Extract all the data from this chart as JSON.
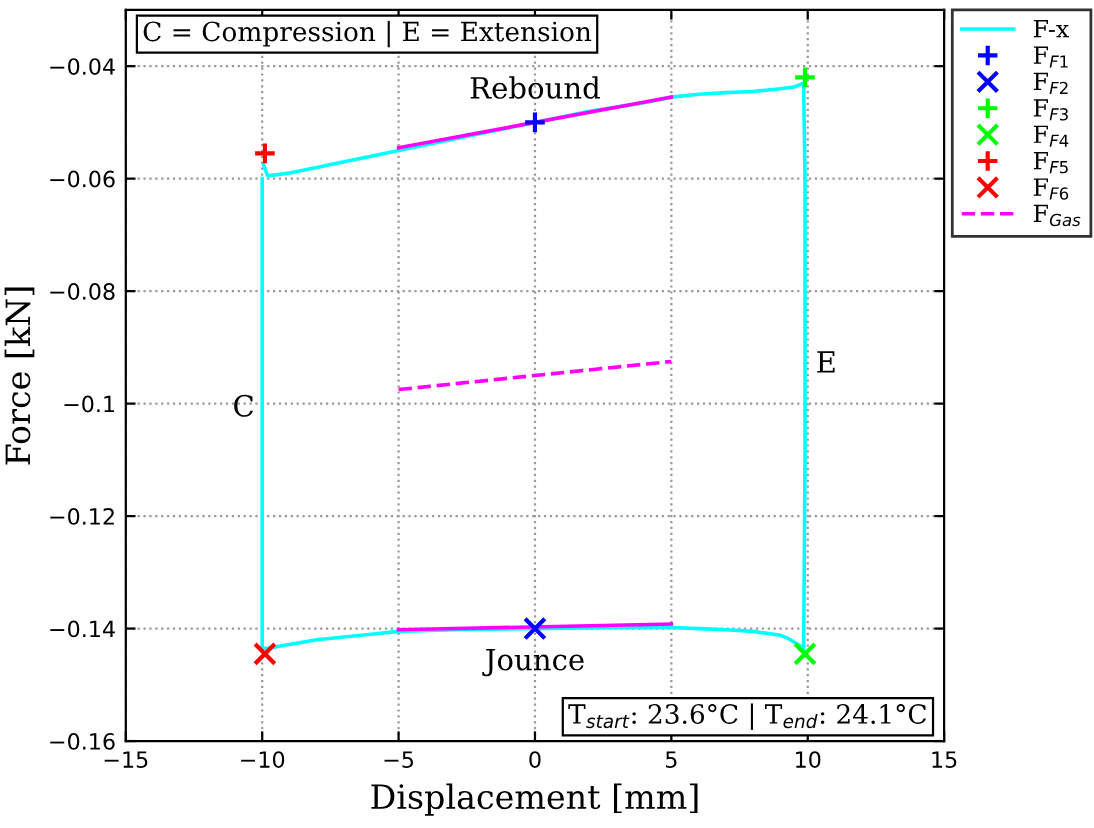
{
  "chart_data": {
    "type": "line",
    "xlabel": "Displacement [mm]",
    "ylabel": "Force [kN]",
    "xlim": [
      -15,
      15
    ],
    "ylim": [
      -0.16,
      -0.03
    ],
    "xticks": [
      -15,
      -10,
      -5,
      0,
      5,
      10,
      15
    ],
    "yticks": [
      -0.16,
      -0.14,
      -0.12,
      -0.1,
      -0.08,
      -0.06,
      -0.04
    ],
    "grid": true,
    "legend": "right",
    "line_style": "solid",
    "series": [
      {
        "name": "F-x",
        "color": "#00ffff",
        "x": [
          -9.95,
          -9.8,
          -9.0,
          -8.0,
          -7.0,
          -6.0,
          -5.0,
          -3.0,
          -1.0,
          0.0,
          2.0,
          4.0,
          5.0,
          6.0,
          7.0,
          8.0,
          9.0,
          9.5,
          9.85,
          9.9,
          9.9,
          9.85,
          9.7,
          9.3,
          9.0,
          8.0,
          7.0,
          6.0,
          5.0,
          3.0,
          0.0,
          -3.0,
          -5.0,
          -6.0,
          -8.0,
          -9.8,
          -10.0,
          -10.0
        ],
        "values": [
          -0.0575,
          -0.0595,
          -0.059,
          -0.058,
          -0.057,
          -0.056,
          -0.055,
          -0.053,
          -0.051,
          -0.05,
          -0.048,
          -0.0465,
          -0.0455,
          -0.045,
          -0.0447,
          -0.0445,
          -0.044,
          -0.0437,
          -0.043,
          -0.06,
          -0.11,
          -0.144,
          -0.143,
          -0.1418,
          -0.1412,
          -0.1405,
          -0.1402,
          -0.14,
          -0.1398,
          -0.1398,
          -0.14,
          -0.1402,
          -0.1405,
          -0.141,
          -0.142,
          -0.1435,
          -0.1435,
          -0.06
        ]
      },
      {
        "name": "F$_{F1}$",
        "type": "scatter",
        "marker": "plus",
        "color": "#0000ff",
        "x": [
          0
        ],
        "values": [
          -0.05
        ]
      },
      {
        "name": "F$_{F2}$",
        "type": "scatter",
        "marker": "cross",
        "color": "#0000ff",
        "x": [
          0
        ],
        "values": [
          -0.14
        ]
      },
      {
        "name": "F$_{F3}$",
        "type": "scatter",
        "marker": "plus",
        "color": "#00ff00",
        "x": [
          9.9
        ],
        "values": [
          -0.042
        ]
      },
      {
        "name": "F$_{F4}$",
        "type": "scatter",
        "marker": "cross",
        "color": "#00ff00",
        "x": [
          9.9
        ],
        "values": [
          -0.1445
        ]
      },
      {
        "name": "F$_{F5}$",
        "type": "scatter",
        "marker": "plus",
        "color": "#ff0000",
        "x": [
          -9.9
        ],
        "values": [
          -0.0555
        ]
      },
      {
        "name": "F$_{F6}$",
        "type": "scatter",
        "marker": "cross",
        "color": "#ff0000",
        "x": [
          -9.9
        ],
        "values": [
          -0.1445
        ]
      },
      {
        "name": "F$_{Gas}$",
        "type": "line",
        "line_style": "dashed",
        "color": "#ff00ff",
        "x": [
          -5,
          5
        ],
        "values": [
          -0.0975,
          -0.0925
        ]
      },
      {
        "color": "#ff00ff",
        "x": [
          -5,
          5
        ],
        "values": [
          -0.0545,
          -0.0455
        ]
      },
      {
        "color": "#ff00ff",
        "x": [
          -5,
          5
        ],
        "values": [
          -0.1402,
          -0.1392
        ]
      }
    ],
    "annotations": [
      "Rebound",
      "Jounce",
      "C",
      "E",
      "C = Compression | E = Extension",
      "T$_{start}$: 23.6°C | T$_{end}$: 24.1°C"
    ]
  }
}
